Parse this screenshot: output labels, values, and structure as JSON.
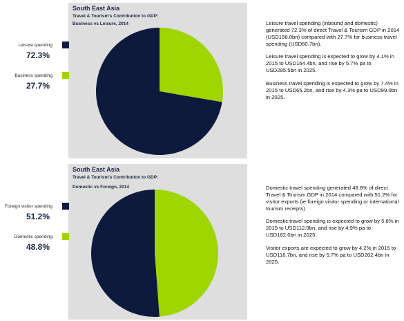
{
  "colors": {
    "navy": "#0d1a3e",
    "green": "#9fd500",
    "panel": "#dedede"
  },
  "charts": [
    {
      "title": "South East Asia",
      "subtitle_lines": [
        "Travel & Tourism's Contribution to GDP:",
        "Business vs Leisure, 2014"
      ],
      "legend": [
        {
          "label": "Leisure spending",
          "value_text": "72.3%",
          "color": "#0d1a3e"
        },
        {
          "label": "Business spending",
          "value_text": "27.7%",
          "color": "#9fd500"
        }
      ],
      "notes": [
        "Leisure travel spending (inbound and domestic) generated 72.3% of direct Travel & Tourism GDP in 2014 (USD158.0bn) compared with 27.7% for business travel spending (USD60.7bn).",
        "Leisure travel spending is expected to grow by 4.1% in 2015 to USD164.4bn, and rise by 5.7% pa to USD285.5bn in 2025.",
        "Business travel spending is expected to grow by 7.4% in 2015 to USD65.2bn, and rise by 4.3% pa to USD99.0bn in 2025."
      ]
    },
    {
      "title": "South East Asia",
      "subtitle_lines": [
        "Travel & Tourism's Contribution to GDP:",
        "Domestic vs Foreign, 2014"
      ],
      "legend": [
        {
          "label": "Foreign visitor spending",
          "value_text": "51.2%",
          "color": "#0d1a3e"
        },
        {
          "label": "Domestic spending",
          "value_text": "48.8%",
          "color": "#9fd500"
        }
      ],
      "notes": [
        "Domestic travel spending generated 48.8% of direct Travel & Tourism GDP in 2014 compared with 51.2% for visitor exports (ie foreign visitor spending or international tourism receipts).",
        "Domestic travel spending is expected to grow by 5.8% in 2015 to USD112.9bn, and rise by 4.9% pa to USD182.0bn in 2025.",
        "Visitor exports are expected to grow by 4.2% in 2015 to USD116.7bn, and rise by 5.7% pa to USD202.4bn in 2025."
      ]
    }
  ],
  "chart_data": [
    {
      "type": "pie",
      "title": "South East Asia",
      "subtitle": "Travel & Tourism's Contribution to GDP: Business vs Leisure, 2014",
      "categories": [
        "Leisure spending",
        "Business spending"
      ],
      "values": [
        72.3,
        27.7
      ],
      "colors": [
        "#0d1a3e",
        "#9fd500"
      ],
      "legend": "left"
    },
    {
      "type": "pie",
      "title": "South East Asia",
      "subtitle": "Travel & Tourism's Contribution to GDP: Domestic vs Foreign, 2014",
      "categories": [
        "Foreign visitor spending",
        "Domestic spending"
      ],
      "values": [
        51.2,
        48.8
      ],
      "colors": [
        "#0d1a3e",
        "#9fd500"
      ],
      "legend": "left"
    }
  ]
}
